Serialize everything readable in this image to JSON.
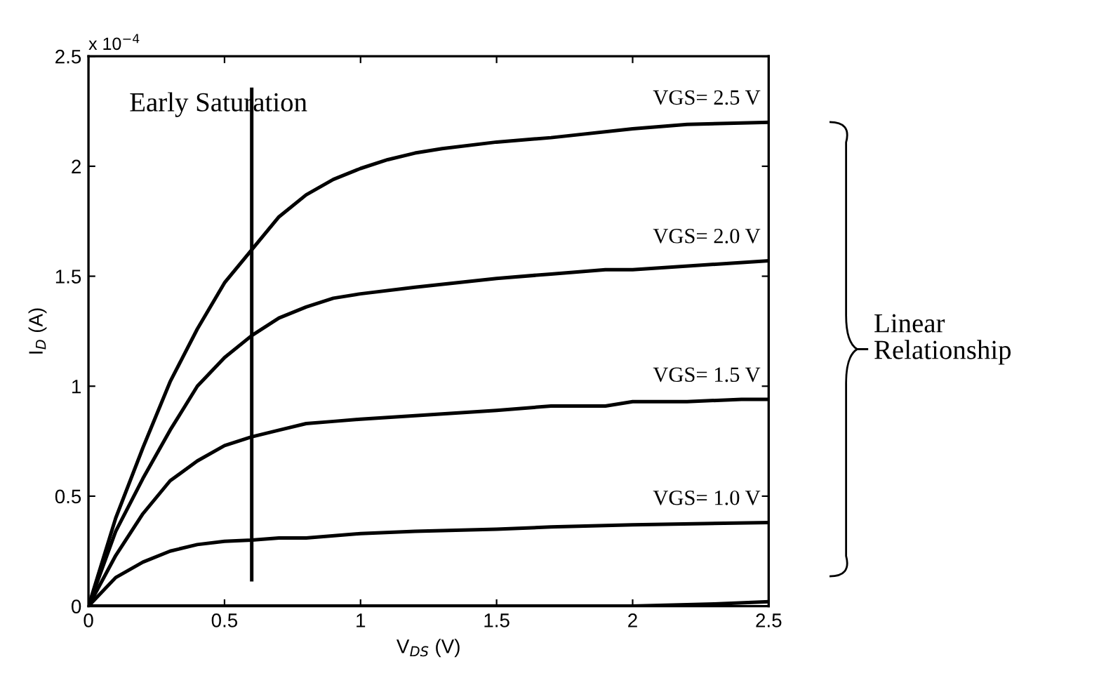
{
  "chart_data": {
    "type": "line",
    "xlabel": "V$_{DS}$ (V)",
    "ylabel": "I$_{D}$ (A)",
    "xlim": [
      0,
      2.5
    ],
    "ylim": [
      0,
      2.5
    ],
    "xticks": [
      0,
      0.5,
      1,
      1.5,
      2,
      2.5
    ],
    "yticks": [
      0,
      0.5,
      1,
      1.5,
      2,
      2.5
    ],
    "grid": false,
    "legend": "right",
    "marker": "none",
    "line_style": "solid",
    "series": [
      {
        "name": "VGS= 2.5 V",
        "color": "#000000",
        "x": [
          0,
          0.1,
          0.2,
          0.3,
          0.4,
          0.5,
          0.6,
          0.7,
          0.8,
          0.9,
          1.0,
          1.1,
          1.2,
          1.3,
          1.5,
          1.7,
          2.0,
          2.2,
          2.5
        ],
        "values": [
          0,
          0.4,
          0.72,
          1.02,
          1.26,
          1.47,
          1.62,
          1.77,
          1.87,
          1.94,
          1.99,
          2.03,
          2.06,
          2.08,
          2.11,
          2.13,
          2.17,
          2.19,
          2.2
        ]
      },
      {
        "name": "VGS= 2.0 V",
        "color": "#000000",
        "x": [
          0,
          0.1,
          0.2,
          0.3,
          0.4,
          0.5,
          0.6,
          0.7,
          0.8,
          0.9,
          1.0,
          1.2,
          1.5,
          1.7,
          1.9,
          2.0,
          2.5
        ],
        "values": [
          0,
          0.34,
          0.58,
          0.8,
          1.0,
          1.13,
          1.23,
          1.31,
          1.36,
          1.4,
          1.42,
          1.45,
          1.49,
          1.51,
          1.53,
          1.53,
          1.57
        ]
      },
      {
        "name": "VGS= 1.5 V",
        "color": "#000000",
        "x": [
          0,
          0.1,
          0.2,
          0.3,
          0.4,
          0.5,
          0.6,
          0.7,
          0.8,
          0.9,
          1.0,
          1.5,
          1.7,
          1.9,
          2.0,
          2.2,
          2.4,
          2.5
        ],
        "values": [
          0,
          0.23,
          0.42,
          0.57,
          0.66,
          0.73,
          0.77,
          0.8,
          0.83,
          0.84,
          0.85,
          0.89,
          0.91,
          0.91,
          0.93,
          0.93,
          0.94,
          0.94
        ]
      },
      {
        "name": "VGS= 1.0 V",
        "color": "#000000",
        "x": [
          0,
          0.1,
          0.2,
          0.3,
          0.4,
          0.5,
          0.6,
          0.7,
          0.8,
          1.0,
          1.2,
          1.5,
          1.7,
          2.0,
          2.5
        ],
        "values": [
          0,
          0.13,
          0.2,
          0.25,
          0.28,
          0.295,
          0.3,
          0.31,
          0.31,
          0.33,
          0.34,
          0.35,
          0.36,
          0.37,
          0.38
        ]
      },
      {
        "color": "#000000",
        "x": [
          0,
          1.0,
          2.0,
          2.3,
          2.5
        ],
        "values": [
          0,
          0,
          0,
          0.01,
          0.02
        ]
      },
      {
        "color": "#000000",
        "x": [
          0.6,
          0.6
        ],
        "values": [
          0.12,
          2.35
        ]
      }
    ],
    "annotations": [
      "x 10$^{−4}$",
      {
        "text": "Early Saturation",
        "x": 0.6,
        "y": 2.2
      },
      "Linear Relationship"
    ]
  }
}
